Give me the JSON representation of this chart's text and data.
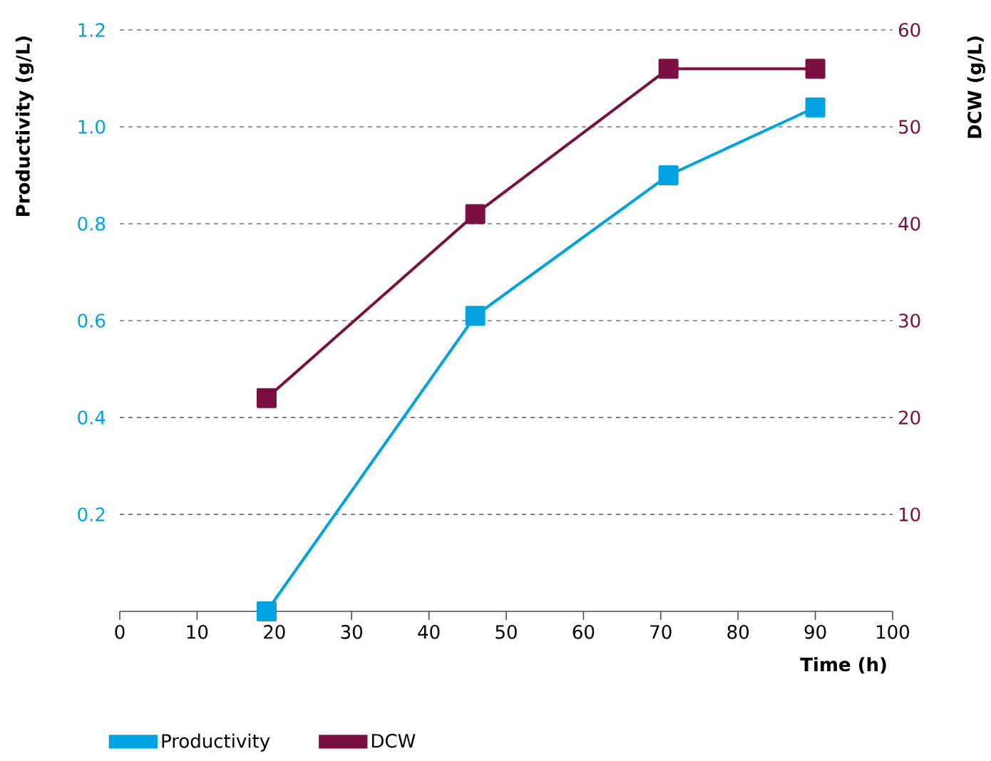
{
  "chart_data": {
    "type": "line",
    "xlabel": "Time (h)",
    "ylabel": "Productivity (g/L)",
    "y2label": "DCW (g/L)",
    "x": [
      19,
      46,
      71,
      90
    ],
    "series": [
      {
        "name": "Productivity",
        "color": "#00a3e0",
        "values": [
          0.0,
          0.61,
          0.9,
          1.04
        ]
      },
      {
        "name": "DCW",
        "color": "#7b0f43",
        "axis": "y2",
        "values": [
          22,
          41,
          56,
          56
        ]
      }
    ],
    "xlim": [
      0,
      100
    ],
    "xticks": [
      0,
      10,
      20,
      30,
      40,
      50,
      60,
      70,
      80,
      90,
      100
    ],
    "ylim": [
      0,
      1.2
    ],
    "yticks": [
      0.2,
      0.4,
      0.6,
      0.8,
      {
        "value": 1.0,
        "label": "1.0"
      },
      1.2
    ],
    "y2lim": [
      0,
      60
    ],
    "y2ticks": [
      10,
      20,
      30,
      40,
      50,
      60
    ],
    "grid": "y",
    "legend": "bottom",
    "marker": "square",
    "line_style": "solid"
  }
}
